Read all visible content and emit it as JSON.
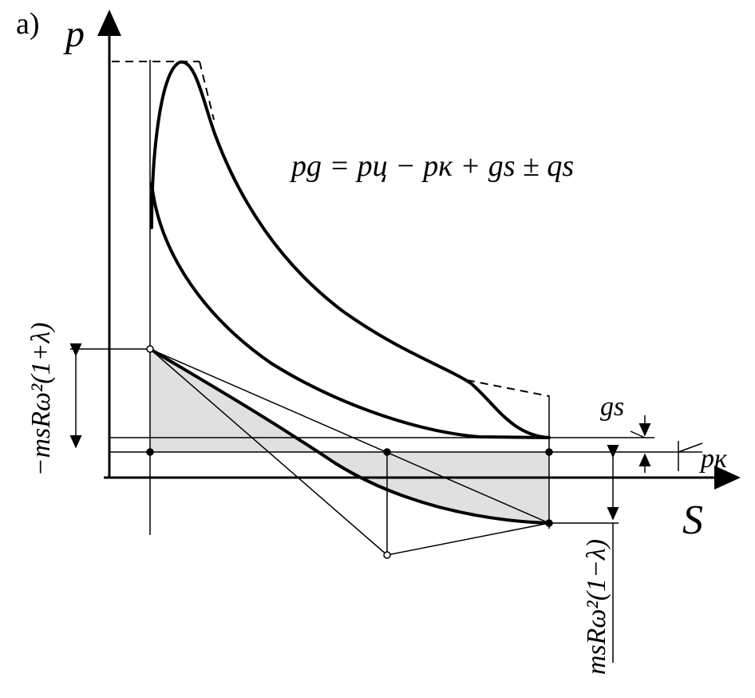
{
  "panel_label": "a)",
  "axes": {
    "y_label": "p",
    "x_label": "S"
  },
  "formula": "pg = pц − pк + gs ± qs",
  "labels": {
    "gs": "gs",
    "pk": "pк",
    "upper_inertia": "−msRω²(1+λ)",
    "lower_inertia": "msRω²(1−λ)"
  }
}
